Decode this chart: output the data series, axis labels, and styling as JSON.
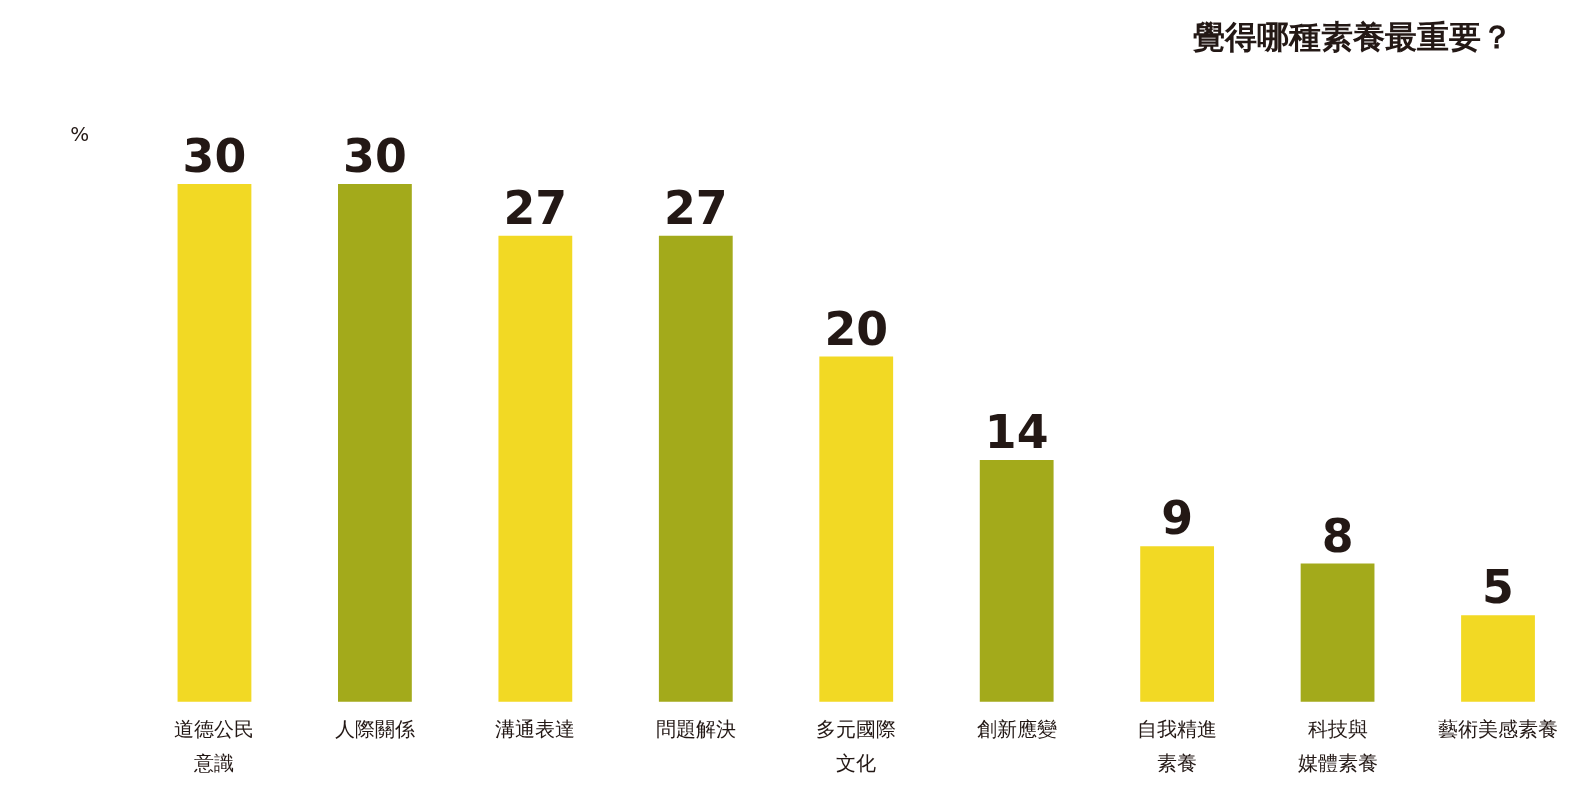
{
  "chart_data": {
    "type": "bar",
    "title": "覺得哪種素養最重要？",
    "ylabel": "%",
    "categories": [
      "道德公民意識",
      "人際關係",
      "溝通表達",
      "問題解決",
      "多元國際文化",
      "創新應變",
      "自我精進素養",
      "科技與媒體素養",
      "藝術美感素養"
    ],
    "values": [
      30,
      30,
      27,
      27,
      20,
      14,
      9,
      8,
      5
    ],
    "colors": [
      "#f2d924",
      "#a3aa1b",
      "#f2d924",
      "#a3aa1b",
      "#f2d924",
      "#a3aa1b",
      "#f2d924",
      "#a3aa1b",
      "#f2d924"
    ],
    "data_labels": true,
    "grid": false
  }
}
